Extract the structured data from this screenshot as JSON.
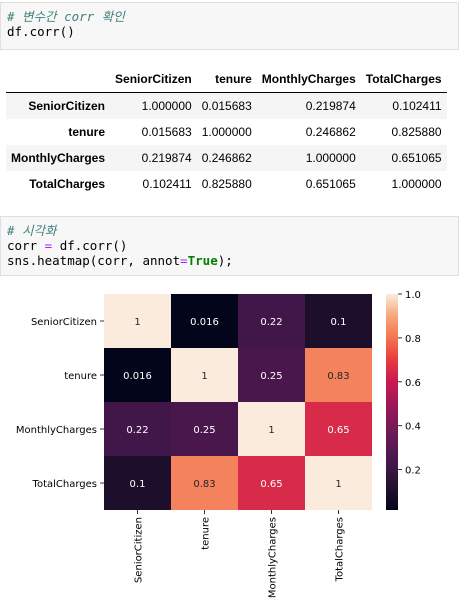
{
  "cell1": {
    "comment": "# 변수간 corr 확인",
    "code": "df.corr()"
  },
  "table": {
    "columns": [
      "SeniorCitizen",
      "tenure",
      "MonthlyCharges",
      "TotalCharges"
    ],
    "rows": [
      {
        "label": "SeniorCitizen",
        "values": [
          "1.000000",
          "0.015683",
          "0.219874",
          "0.102411"
        ]
      },
      {
        "label": "tenure",
        "values": [
          "0.015683",
          "1.000000",
          "0.246862",
          "0.825880"
        ]
      },
      {
        "label": "MonthlyCharges",
        "values": [
          "0.219874",
          "0.246862",
          "1.000000",
          "0.651065"
        ]
      },
      {
        "label": "TotalCharges",
        "values": [
          "0.102411",
          "0.825880",
          "0.651065",
          "1.000000"
        ]
      }
    ]
  },
  "cell2": {
    "comment": "# 시각화",
    "line1": {
      "lhs": "corr ",
      "op": "=",
      "rhs": " df.corr()"
    },
    "line2": {
      "pre": "sns.heatmap(corr, annot",
      "op": "=",
      "kw": "True",
      "post": ");"
    }
  },
  "chart_data": {
    "type": "heatmap",
    "x_labels": [
      "SeniorCitizen",
      "tenure",
      "MonthlyCharges",
      "TotalCharges"
    ],
    "y_labels": [
      "SeniorCitizen",
      "tenure",
      "MonthlyCharges",
      "TotalCharges"
    ],
    "values": [
      [
        1,
        0.016,
        0.22,
        0.1
      ],
      [
        0.016,
        1,
        0.25,
        0.83
      ],
      [
        0.22,
        0.25,
        1,
        0.65
      ],
      [
        0.1,
        0.83,
        0.65,
        1
      ]
    ],
    "annotations": [
      [
        "1",
        "0.016",
        "0.22",
        "0.1"
      ],
      [
        "0.016",
        "1",
        "0.25",
        "0.83"
      ],
      [
        "0.22",
        "0.25",
        "1",
        "0.65"
      ],
      [
        "0.1",
        "0.83",
        "0.65",
        "1"
      ]
    ],
    "colormap": "rocket",
    "vmin": 0.016,
    "vmax": 1,
    "colorbar_ticks": [
      "0.2",
      "0.4",
      "0.6",
      "0.8",
      "1.0"
    ],
    "colorbar_tick_values": [
      0.2,
      0.4,
      0.6,
      0.8,
      1.0
    ]
  }
}
